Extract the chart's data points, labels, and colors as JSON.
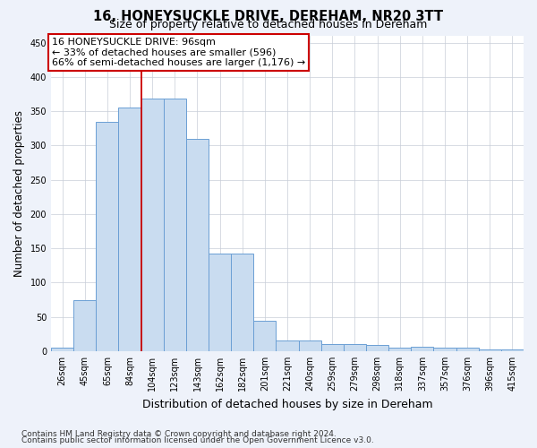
{
  "title": "16, HONEYSUCKLE DRIVE, DEREHAM, NR20 3TT",
  "subtitle": "Size of property relative to detached houses in Dereham",
  "xlabel": "Distribution of detached houses by size in Dereham",
  "ylabel": "Number of detached properties",
  "categories": [
    "26sqm",
    "45sqm",
    "65sqm",
    "84sqm",
    "104sqm",
    "123sqm",
    "143sqm",
    "162sqm",
    "182sqm",
    "201sqm",
    "221sqm",
    "240sqm",
    "259sqm",
    "279sqm",
    "298sqm",
    "318sqm",
    "337sqm",
    "357sqm",
    "376sqm",
    "396sqm",
    "415sqm"
  ],
  "values": [
    5,
    75,
    335,
    355,
    368,
    368,
    310,
    142,
    142,
    45,
    16,
    16,
    10,
    10,
    9,
    5,
    6,
    5,
    5,
    2,
    2
  ],
  "bar_color": "#c9dcf0",
  "bar_edge_color": "#6b9fd4",
  "vline_x": 3.5,
  "vline_color": "#cc0000",
  "annotation_title": "16 HONEYSUCKLE DRIVE: 96sqm",
  "annotation_line2": "← 33% of detached houses are smaller (596)",
  "annotation_line3": "66% of semi-detached houses are larger (1,176) →",
  "annotation_box_edgecolor": "#cc0000",
  "annotation_fill": "white",
  "ylim": [
    0,
    460
  ],
  "yticks": [
    0,
    50,
    100,
    150,
    200,
    250,
    300,
    350,
    400,
    450
  ],
  "footer1": "Contains HM Land Registry data © Crown copyright and database right 2024.",
  "footer2": "Contains public sector information licensed under the Open Government Licence v3.0.",
  "bg_color": "#eef2fa",
  "plot_bg_color": "white",
  "title_fontsize": 10.5,
  "subtitle_fontsize": 9,
  "tick_fontsize": 7,
  "ylabel_fontsize": 8.5,
  "xlabel_fontsize": 9,
  "footer_fontsize": 6.5,
  "annotation_fontsize": 8
}
